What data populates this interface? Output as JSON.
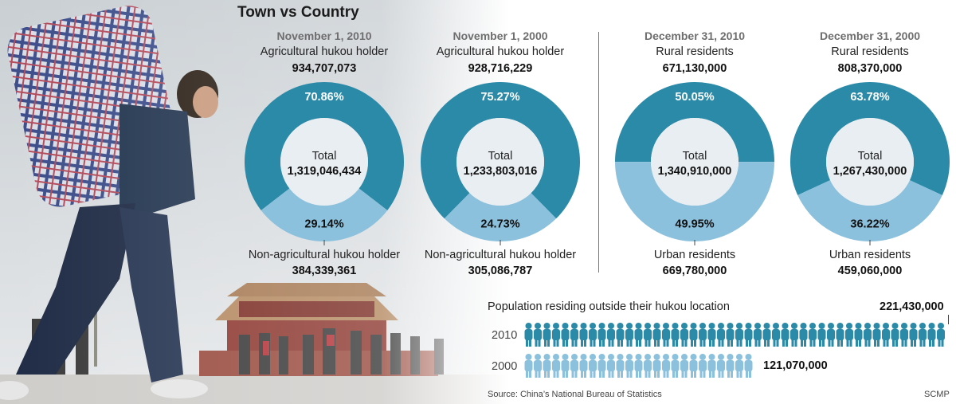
{
  "title": "Town vs Country",
  "colors": {
    "dark": "#2a8aa8",
    "light": "#8cc1dd",
    "center": "#e8eef2"
  },
  "chart_data": [
    {
      "type": "pie",
      "date": "November 1, 2010",
      "total_label": "Total",
      "total": "1,319,046,434",
      "top": {
        "label": "Agricultural hukou holder",
        "value": "934,707,073",
        "pct": 70.86,
        "pct_label": "70.86%"
      },
      "bottom": {
        "label": "Non-agricultural hukou holder",
        "value": "384,339,361",
        "pct": 29.14,
        "pct_label": "29.14%"
      }
    },
    {
      "type": "pie",
      "date": "November 1, 2000",
      "total_label": "Total",
      "total": "1,233,803,016",
      "top": {
        "label": "Agricultural hukou holder",
        "value": "928,716,229",
        "pct": 75.27,
        "pct_label": "75.27%"
      },
      "bottom": {
        "label": "Non-agricultural hukou holder",
        "value": "305,086,787",
        "pct": 24.73,
        "pct_label": "24.73%"
      }
    },
    {
      "type": "pie",
      "date": "December 31, 2010",
      "total_label": "Total",
      "total": "1,340,910,000",
      "top": {
        "label": "Rural residents",
        "value": "671,130,000",
        "pct": 50.05,
        "pct_label": "50.05%"
      },
      "bottom": {
        "label": "Urban residents",
        "value": "669,780,000",
        "pct": 49.95,
        "pct_label": "49.95%"
      }
    },
    {
      "type": "pie",
      "date": "December 31, 2000",
      "total_label": "Total",
      "total": "1,267,430,000",
      "top": {
        "label": "Rural residents",
        "value": "808,370,000",
        "pct": 63.78,
        "pct_label": "63.78%"
      },
      "bottom": {
        "label": "Urban residents",
        "value": "459,060,000",
        "pct": 36.22,
        "pct_label": "36.22%"
      }
    },
    {
      "type": "bar",
      "title": "Population residing outside their hukou location",
      "categories": [
        "2010",
        "2000"
      ],
      "values": [
        221430000,
        121070000
      ],
      "value_labels": [
        "221,430,000",
        "121,070,000"
      ]
    }
  ],
  "source": "Source: China’s National Bureau of Statistics",
  "credit": "SCMP"
}
